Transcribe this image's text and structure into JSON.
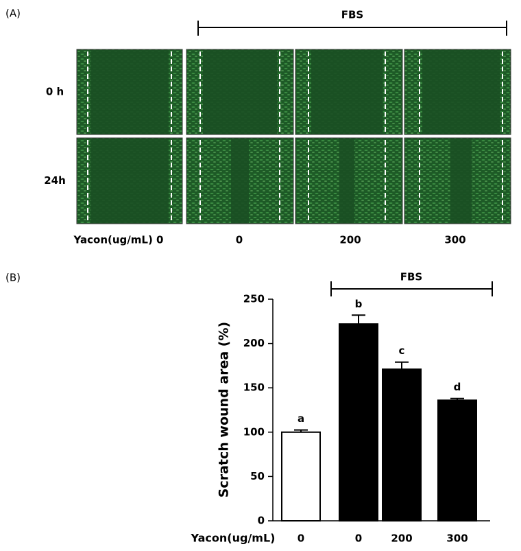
{
  "panel_a": {
    "label": "(A)",
    "treatment": "FBS",
    "rows": [
      "0 h",
      "24h"
    ],
    "columns": [
      "Yacon(ug/mL) 0",
      "0",
      "200",
      "300"
    ]
  },
  "chart_data": {
    "type": "bar",
    "panel_label": "(B)",
    "bracket_label": "FBS",
    "y_label": "Scratch wound area (%)",
    "x_label": "Yacon(ug/mL)",
    "categories": [
      "0",
      "0",
      "200",
      "300"
    ],
    "values": [
      100,
      222,
      171,
      136
    ],
    "errors": [
      2.5,
      10,
      8,
      2
    ],
    "annotations": [
      "a",
      "b",
      "c",
      "d"
    ],
    "colors": [
      "#ffffff",
      "#000000",
      "#000000",
      "#000000"
    ],
    "ylim": [
      0,
      250
    ],
    "yticks": [
      0,
      50,
      100,
      150,
      200,
      250
    ]
  }
}
